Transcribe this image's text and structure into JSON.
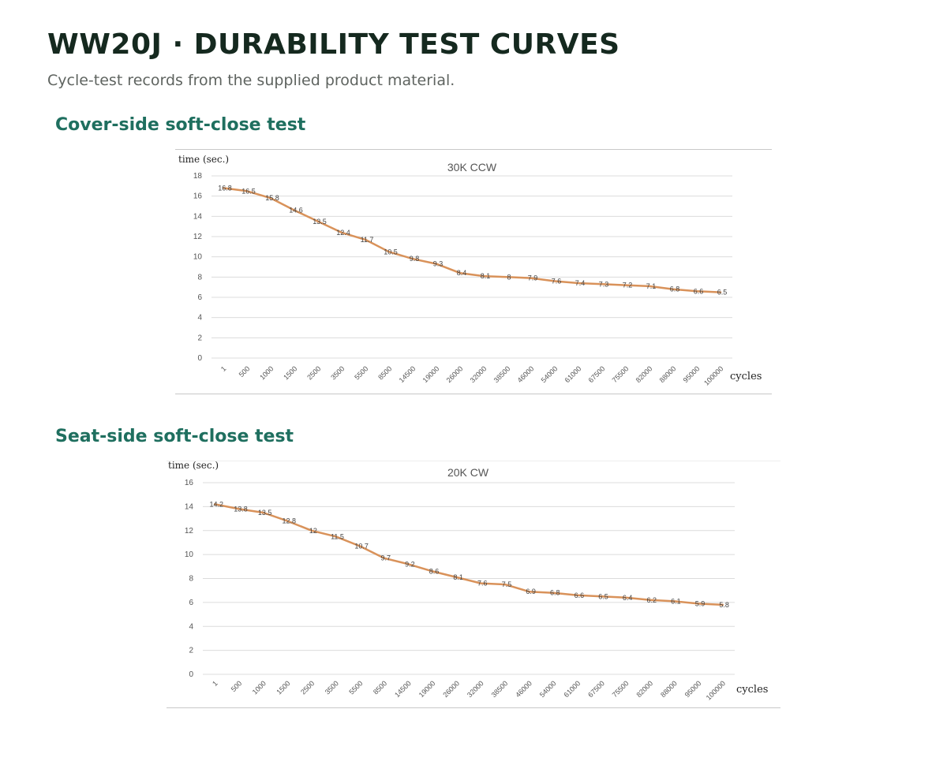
{
  "page": {
    "title": "WW20J · DURABILITY TEST CURVES",
    "subtitle": "Cycle-test records from the supplied product material."
  },
  "sections": [
    {
      "heading": "Cover-side soft-close test"
    },
    {
      "heading": "Seat-side soft-close test"
    }
  ],
  "colors": {
    "line": "#d9925a",
    "grid": "#dcdcdc",
    "heading": "#1f6f5f",
    "title": "#15291f"
  },
  "chart_data": [
    {
      "type": "line",
      "title": "30K CCW",
      "ylabel": "time (sec.)",
      "xlabel": "cycles",
      "ylim": [
        0,
        18
      ],
      "ytick_step": 2,
      "grid": true,
      "categories": [
        "1",
        "500",
        "1000",
        "1500",
        "2500",
        "3500",
        "5500",
        "8500",
        "14500",
        "19000",
        "26000",
        "32000",
        "38500",
        "46000",
        "54000",
        "61000",
        "67500",
        "75500",
        "82000",
        "88000",
        "95000",
        "100000"
      ],
      "series": [
        {
          "values": [
            16.8,
            16.5,
            15.8,
            14.6,
            13.5,
            12.4,
            11.7,
            10.5,
            9.8,
            9.3,
            8.4,
            8.1,
            8,
            7.9,
            7.6,
            7.4,
            7.3,
            7.2,
            7.1,
            6.8,
            6.6,
            6.5
          ]
        }
      ]
    },
    {
      "type": "line",
      "title": "20K CW",
      "ylabel": "time (sec.)",
      "xlabel": "cycles",
      "ylim": [
        0,
        16
      ],
      "ytick_step": 2,
      "grid": true,
      "categories": [
        "1",
        "500",
        "1000",
        "1500",
        "2500",
        "3500",
        "5500",
        "8500",
        "14500",
        "19000",
        "26000",
        "32000",
        "38500",
        "46000",
        "54000",
        "61000",
        "67500",
        "75500",
        "82000",
        "88000",
        "95000",
        "100000"
      ],
      "series": [
        {
          "values": [
            14.2,
            13.8,
            13.5,
            12.8,
            12,
            11.5,
            10.7,
            9.7,
            9.2,
            8.6,
            8.1,
            7.6,
            7.5,
            6.9,
            6.8,
            6.6,
            6.5,
            6.4,
            6.2,
            6.1,
            5.9,
            5.8
          ]
        }
      ]
    }
  ]
}
